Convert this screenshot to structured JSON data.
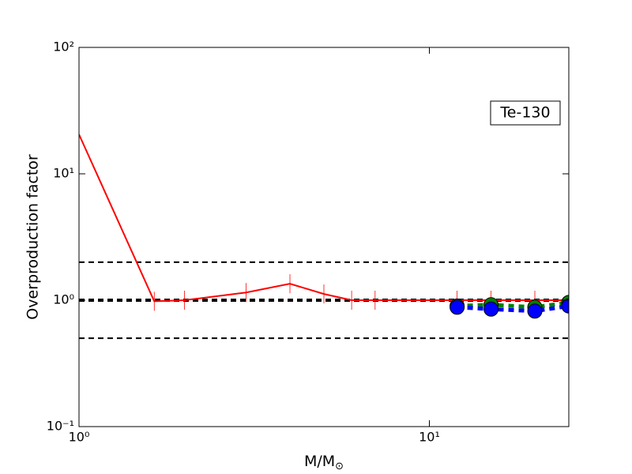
{
  "chart_data": {
    "type": "line",
    "ylabel": "Overproduction factor",
    "xlabel": "M/M",
    "xlabel_sub": "⊙",
    "annotation": "Te-130",
    "xscale": "log",
    "yscale": "log",
    "xlim": [
      1,
      25
    ],
    "ylim": [
      0.1,
      100
    ],
    "xticks": [
      {
        "value": 1,
        "label": "10⁰"
      },
      {
        "value": 10,
        "label": "10¹"
      }
    ],
    "yticks": [
      {
        "value": 0.1,
        "label": "10⁻¹"
      },
      {
        "value": 1,
        "label": "10⁰"
      },
      {
        "value": 10,
        "label": "10¹"
      },
      {
        "value": 100,
        "label": "10²"
      }
    ],
    "hlines": [
      {
        "y": 2,
        "width": 2
      },
      {
        "y": 1,
        "width": 4
      },
      {
        "y": 0.5,
        "width": 2
      }
    ],
    "series": [
      {
        "color": "#ff0000",
        "marker": "tick",
        "dash": false,
        "x": [
          1,
          1.64,
          2,
          3,
          4,
          5,
          6,
          7,
          12,
          15,
          20,
          25
        ],
        "values": [
          20.5,
          0.98,
          1.0,
          1.15,
          1.35,
          1.12,
          1.0,
          1.0,
          1.0,
          1.0,
          1.0,
          1.0
        ]
      },
      {
        "color": "#008000",
        "marker": "circle",
        "dash": true,
        "x": [
          12,
          15,
          20,
          25
        ],
        "values": [
          0.9,
          0.92,
          0.88,
          0.96
        ]
      },
      {
        "color": "#0000ff",
        "marker": "circle",
        "dash": true,
        "x": [
          12,
          15,
          20,
          25
        ],
        "values": [
          0.88,
          0.85,
          0.82,
          0.9
        ]
      }
    ]
  }
}
